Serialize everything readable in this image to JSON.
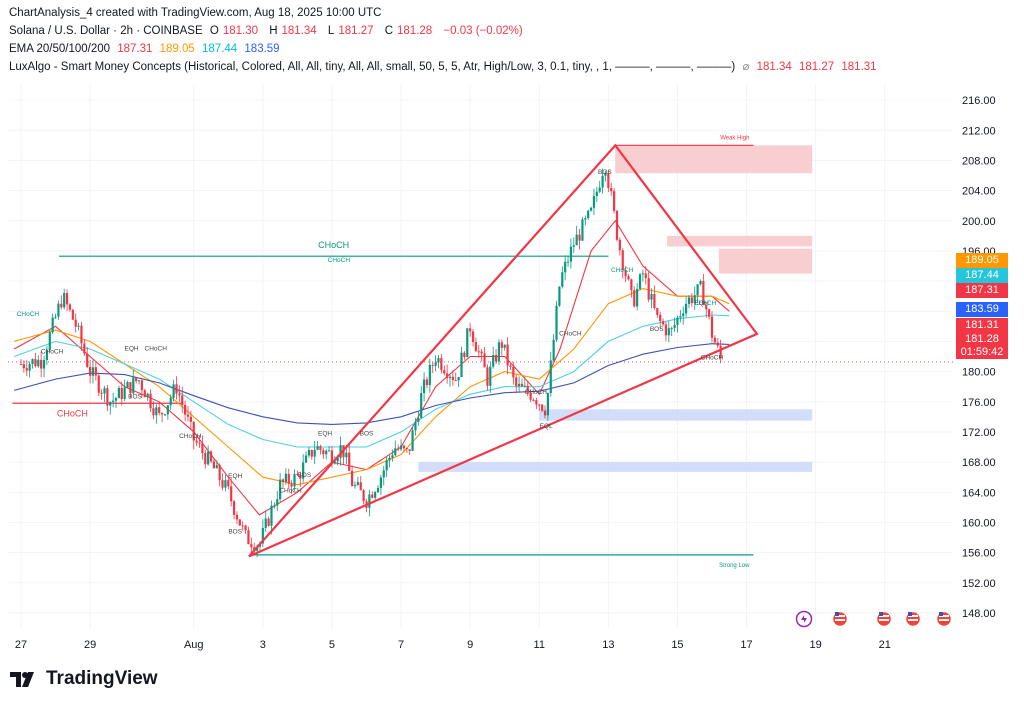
{
  "header": {
    "line1": "ChartAnalysis_4 created with TradingView.com, Aug 18, 2025 10:00 UTC",
    "symbol": "Solana / U.S. Dollar · 2h · COINBASE",
    "o_label": "O",
    "o": "181.30",
    "h_label": "H",
    "h": "181.34",
    "l_label": "L",
    "l": "181.27",
    "c_label": "C",
    "c": "181.28",
    "change": "−0.03 (−0.02%)",
    "ema_label": "EMA 20/50/100/200",
    "ema20": "187.31",
    "ema50": "189.05",
    "ema100": "187.44",
    "ema200": "183.59",
    "lux_label": "LuxAlgo - Smart Money Concepts (Historical, Colored, All, All, tiny, All, All, small, 50, 5, 5, Atr, High/Low, 3, 0.1, tiny, , 1, ———, ———, ———)",
    "lux_v1": "181.34",
    "lux_v2": "181.27",
    "lux_v3": "181.31"
  },
  "colors": {
    "ema20": "#f23645",
    "ema50": "#ff9800",
    "ema100": "#4dd0e1",
    "ema200": "#3f51b5",
    "up": "#089981",
    "down": "#f23645",
    "triangle": "#f23645",
    "supply": "#f7c6c9",
    "demand": "#c9d7f8",
    "choch_green": "#089981"
  },
  "price_boxes": {
    "ema50": "189.05",
    "ema100": "187.44",
    "ema20": "187.31",
    "ema200": "183.59",
    "lux": "181.31",
    "last": "181.28",
    "countdown": "01:59:42"
  },
  "chart_data": {
    "type": "candlestick",
    "title": "Solana / U.S. Dollar · 2h · COINBASE",
    "ylim": [
      146,
      218
    ],
    "y_ticks": [
      "216.00",
      "212.00",
      "208.00",
      "204.00",
      "200.00",
      "196.00",
      "192.00",
      "188.00",
      "184.00",
      "180.00",
      "176.00",
      "172.00",
      "168.00",
      "164.00",
      "160.00",
      "156.00",
      "152.00",
      "148.00"
    ],
    "x_ticks": [
      "27",
      "29",
      "Aug",
      "3",
      "5",
      "7",
      "9",
      "11",
      "13",
      "15",
      "17",
      "19",
      "21"
    ],
    "day_range": [
      26.75,
      22.6
    ],
    "close_path": [
      [
        27.0,
        181
      ],
      [
        27.6,
        181.5
      ],
      [
        28.2,
        190
      ],
      [
        28.6,
        186
      ],
      [
        29.0,
        180
      ],
      [
        29.6,
        176
      ],
      [
        30.4,
        179
      ],
      [
        31.0,
        174
      ],
      [
        31.5,
        178
      ],
      [
        32.0,
        171
      ],
      [
        32.6,
        167
      ],
      [
        33.0,
        164
      ],
      [
        33.5,
        158
      ],
      [
        33.9,
        157
      ],
      [
        34.5,
        165
      ],
      [
        35.0,
        166
      ],
      [
        35.5,
        170
      ],
      [
        36.0,
        169
      ],
      [
        36.3,
        170
      ],
      [
        36.6,
        165
      ],
      [
        37.0,
        163
      ],
      [
        37.4,
        166
      ],
      [
        37.8,
        170
      ],
      [
        38.2,
        169
      ],
      [
        38.6,
        177
      ],
      [
        39.0,
        182
      ],
      [
        39.6,
        179
      ],
      [
        40.0,
        186
      ],
      [
        40.5,
        179
      ],
      [
        40.9,
        184
      ],
      [
        41.3,
        178
      ],
      [
        41.8,
        177
      ],
      [
        42.2,
        175
      ],
      [
        42.6,
        192
      ],
      [
        43.0,
        197
      ],
      [
        43.5,
        201
      ],
      [
        43.9,
        208
      ],
      [
        44.3,
        197
      ],
      [
        44.7,
        189
      ],
      [
        45.0,
        193
      ],
      [
        45.4,
        187
      ],
      [
        45.8,
        185
      ],
      [
        46.2,
        189
      ],
      [
        46.7,
        191
      ],
      [
        47.0,
        185
      ],
      [
        47.3,
        181
      ]
    ],
    "ema20": [
      [
        26.8,
        183
      ],
      [
        28.0,
        186
      ],
      [
        29.0,
        182
      ],
      [
        30.0,
        178
      ],
      [
        31.0,
        176
      ],
      [
        32.0,
        172
      ],
      [
        33.0,
        166
      ],
      [
        33.9,
        161
      ],
      [
        35.0,
        164
      ],
      [
        36.0,
        168
      ],
      [
        37.0,
        167
      ],
      [
        38.0,
        170
      ],
      [
        39.0,
        178
      ],
      [
        40.0,
        182
      ],
      [
        41.0,
        182
      ],
      [
        42.0,
        177
      ],
      [
        42.6,
        183
      ],
      [
        43.5,
        196
      ],
      [
        44.2,
        200
      ],
      [
        45.0,
        194
      ],
      [
        46.0,
        190
      ],
      [
        47.0,
        190
      ],
      [
        47.5,
        188
      ]
    ],
    "ema50": [
      [
        26.8,
        184
      ],
      [
        28.0,
        185.5
      ],
      [
        29.0,
        184
      ],
      [
        30.0,
        181
      ],
      [
        31.0,
        178
      ],
      [
        32.0,
        174
      ],
      [
        33.0,
        170
      ],
      [
        34.0,
        166
      ],
      [
        35.0,
        165
      ],
      [
        36.0,
        166
      ],
      [
        37.0,
        167
      ],
      [
        38.0,
        169
      ],
      [
        39.0,
        174
      ],
      [
        40.0,
        178
      ],
      [
        41.0,
        180
      ],
      [
        42.0,
        179
      ],
      [
        43.0,
        183
      ],
      [
        44.0,
        189
      ],
      [
        45.0,
        191
      ],
      [
        46.0,
        190
      ],
      [
        47.0,
        190
      ],
      [
        47.5,
        189
      ]
    ],
    "ema100": [
      [
        26.8,
        182
      ],
      [
        28.0,
        184
      ],
      [
        29.0,
        183
      ],
      [
        30.0,
        181
      ],
      [
        31.0,
        179
      ],
      [
        32.0,
        176
      ],
      [
        33.0,
        173
      ],
      [
        34.0,
        171
      ],
      [
        35.0,
        170
      ],
      [
        36.0,
        170
      ],
      [
        37.0,
        170
      ],
      [
        38.0,
        172
      ],
      [
        39.0,
        175
      ],
      [
        40.0,
        177
      ],
      [
        41.0,
        178
      ],
      [
        42.0,
        178
      ],
      [
        43.0,
        180
      ],
      [
        44.0,
        184
      ],
      [
        45.0,
        186
      ],
      [
        46.0,
        187
      ],
      [
        47.0,
        187.5
      ],
      [
        47.5,
        187.4
      ]
    ],
    "ema200": [
      [
        26.8,
        177.5
      ],
      [
        28.0,
        179
      ],
      [
        29.0,
        179.8
      ],
      [
        30.0,
        179.6
      ],
      [
        31.0,
        178.5
      ],
      [
        32.0,
        176.8
      ],
      [
        33.0,
        175.2
      ],
      [
        34.0,
        174
      ],
      [
        35.0,
        173.2
      ],
      [
        36.0,
        173
      ],
      [
        37.0,
        173.2
      ],
      [
        38.0,
        174
      ],
      [
        39.0,
        175.5
      ],
      [
        40.0,
        176.5
      ],
      [
        41.0,
        177.2
      ],
      [
        42.0,
        177.4
      ],
      [
        43.0,
        178.5
      ],
      [
        44.0,
        180.8
      ],
      [
        45.0,
        182.3
      ],
      [
        46.0,
        183.2
      ],
      [
        47.0,
        183.7
      ],
      [
        47.5,
        183.6
      ]
    ],
    "triangle": {
      "apex_top": [
        44.2,
        210
      ],
      "apex_right": [
        48.3,
        185
      ],
      "apex_bottom": [
        33.6,
        155.5
      ]
    },
    "zones": [
      {
        "kind": "supply",
        "x0": 44.2,
        "x1": 49.9,
        "y0": 206.3,
        "y1": 210
      },
      {
        "kind": "supply",
        "x0": 45.7,
        "x1": 49.9,
        "y0": 196.6,
        "y1": 198
      },
      {
        "kind": "supply",
        "x0": 47.2,
        "x1": 49.9,
        "y0": 193,
        "y1": 196.3
      },
      {
        "kind": "demand",
        "x0": 42.0,
        "x1": 49.9,
        "y0": 173.5,
        "y1": 175
      },
      {
        "kind": "demand",
        "x0": 38.5,
        "x1": 49.9,
        "y0": 166.7,
        "y1": 168
      }
    ],
    "levels": [
      {
        "label": "Weak High",
        "x0": 44.2,
        "x1": 48.2,
        "y": 210,
        "color": "#f23645"
      },
      {
        "label": "Strong Low",
        "x0": 33.7,
        "x1": 48.2,
        "y": 155.7,
        "color": "#089981"
      },
      {
        "label": "CHoCH",
        "x0": 28.1,
        "x1": 44.0,
        "y": 195.3,
        "color": "#089981"
      },
      {
        "label": "CHoCH",
        "x0": 26.75,
        "x1": 31.7,
        "y": 175.8,
        "color": "#f23645"
      }
    ],
    "annotations": [
      {
        "text": "CHoCH",
        "x": 27.2,
        "y": 187.4
      },
      {
        "text": "CHoCH",
        "x": 27.9,
        "y": 182.4
      },
      {
        "text": "EQH",
        "x": 30.2,
        "y": 182.8
      },
      {
        "text": "CHoCH",
        "x": 30.9,
        "y": 182.8
      },
      {
        "text": "BOS",
        "x": 30.3,
        "y": 176.4
      },
      {
        "text": "CHoCH",
        "x": 31.9,
        "y": 171.2
      },
      {
        "text": "EQH",
        "x": 33.2,
        "y": 165.9
      },
      {
        "text": "BOS",
        "x": 33.2,
        "y": 158.5
      },
      {
        "text": "CHoCH",
        "x": 34.8,
        "y": 164.0
      },
      {
        "text": "BOS",
        "x": 35.2,
        "y": 166.0
      },
      {
        "text": "EQH",
        "x": 35.8,
        "y": 171.5
      },
      {
        "text": "BOS",
        "x": 37.0,
        "y": 171.5
      },
      {
        "text": "CHoCH",
        "x": 36.2,
        "y": 194.5
      },
      {
        "text": "CHoCH",
        "x": 41.9,
        "y": 177.0
      },
      {
        "text": "EQL",
        "x": 42.2,
        "y": 172.5
      },
      {
        "text": "CHoCH",
        "x": 42.9,
        "y": 184.8
      },
      {
        "text": "BOS",
        "x": 43.9,
        "y": 206.2
      },
      {
        "text": "CHoCH",
        "x": 44.4,
        "y": 193.2
      },
      {
        "text": "BOS",
        "x": 45.4,
        "y": 185.4
      },
      {
        "text": "EQH",
        "x": 46.7,
        "y": 188.8
      },
      {
        "text": "CHoCH",
        "x": 46.8,
        "y": 188.8
      },
      {
        "text": "CHoCH",
        "x": 47.0,
        "y": 181.6
      }
    ]
  },
  "footer": {
    "brand": "TradingView"
  }
}
